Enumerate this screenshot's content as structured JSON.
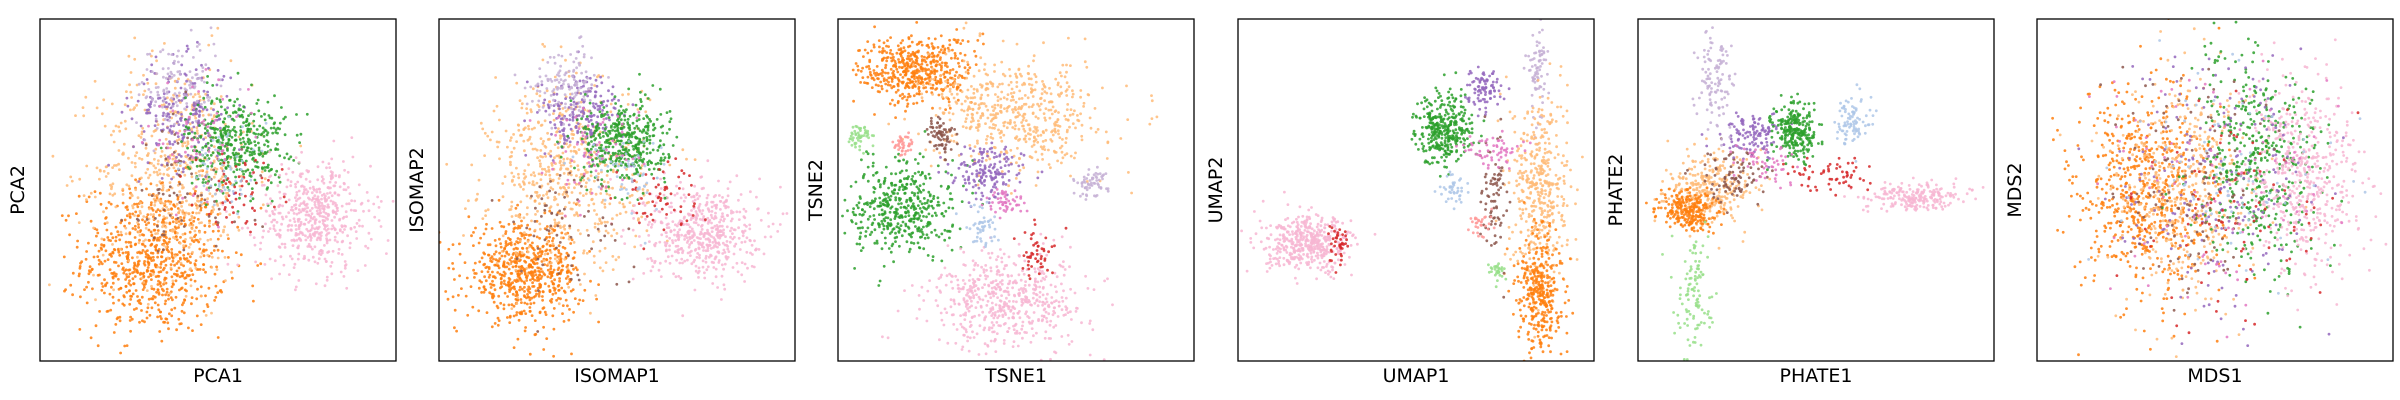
{
  "palette": {
    "orange": "#ff7f0e",
    "light_orange": "#ffbb78",
    "pink": "#f7b6d2",
    "green": "#2ca02c",
    "light_green": "#98df8a",
    "purple": "#9467bd",
    "lavender": "#c5b0d5",
    "red": "#d62728",
    "salmon": "#ff9896",
    "brown": "#8c564b",
    "magenta": "#e377c2",
    "light_blue": "#aec7e8"
  },
  "chart_data": [
    {
      "type": "scatter",
      "xlabel": "PCA1",
      "ylabel": "PCA2",
      "xlim": [
        0,
        100
      ],
      "ylim": [
        0,
        100
      ],
      "grid": false,
      "legend": "none",
      "clusters": [
        {
          "color": "orange",
          "cx": 32,
          "cy": 30,
          "sx": 10,
          "sy": 11,
          "n": 750
        },
        {
          "color": "light_orange",
          "cx": 38,
          "cy": 56,
          "sx": 11,
          "sy": 16,
          "n": 550
        },
        {
          "color": "purple",
          "cx": 40,
          "cy": 72,
          "sx": 7,
          "sy": 8,
          "n": 220
        },
        {
          "color": "lavender",
          "cx": 39,
          "cy": 80,
          "sx": 6,
          "sy": 7,
          "n": 120
        },
        {
          "color": "green",
          "cx": 55,
          "cy": 64,
          "sx": 7,
          "sy": 7,
          "n": 420
        },
        {
          "color": "pink",
          "cx": 77,
          "cy": 42,
          "sx": 8,
          "sy": 8,
          "n": 520
        },
        {
          "color": "red",
          "cx": 56,
          "cy": 50,
          "sx": 6,
          "sy": 5,
          "n": 60
        },
        {
          "color": "brown",
          "cx": 38,
          "cy": 48,
          "sx": 10,
          "sy": 12,
          "n": 70
        },
        {
          "color": "light_blue",
          "cx": 52,
          "cy": 56,
          "sx": 6,
          "sy": 6,
          "n": 60
        },
        {
          "color": "magenta",
          "cx": 44,
          "cy": 64,
          "sx": 7,
          "sy": 8,
          "n": 60
        }
      ]
    },
    {
      "type": "scatter",
      "xlabel": "ISOMAP1",
      "ylabel": "ISOMAP2",
      "xlim": [
        0,
        100
      ],
      "ylim": [
        0,
        100
      ],
      "grid": false,
      "legend": "none",
      "clusters": [
        {
          "color": "orange",
          "cx": 24,
          "cy": 26,
          "sx": 8,
          "sy": 7,
          "n": 650
        },
        {
          "color": "light_orange",
          "cx": 36,
          "cy": 54,
          "sx": 11,
          "sy": 14,
          "n": 600
        },
        {
          "color": "purple",
          "cx": 40,
          "cy": 72,
          "sx": 6,
          "sy": 6,
          "n": 200
        },
        {
          "color": "lavender",
          "cx": 36,
          "cy": 82,
          "sx": 5,
          "sy": 5,
          "n": 120
        },
        {
          "color": "green",
          "cx": 52,
          "cy": 64,
          "sx": 6,
          "sy": 6,
          "n": 420
        },
        {
          "color": "pink",
          "cx": 74,
          "cy": 38,
          "sx": 8,
          "sy": 7,
          "n": 520
        },
        {
          "color": "red",
          "cx": 62,
          "cy": 48,
          "sx": 6,
          "sy": 5,
          "n": 60
        },
        {
          "color": "brown",
          "cx": 34,
          "cy": 40,
          "sx": 9,
          "sy": 10,
          "n": 70
        },
        {
          "color": "light_blue",
          "cx": 52,
          "cy": 55,
          "sx": 6,
          "sy": 6,
          "n": 60
        },
        {
          "color": "magenta",
          "cx": 43,
          "cy": 62,
          "sx": 7,
          "sy": 7,
          "n": 60
        }
      ]
    },
    {
      "type": "scatter",
      "xlabel": "TSNE1",
      "ylabel": "TSNE2",
      "xlim": [
        0,
        100
      ],
      "ylim": [
        0,
        100
      ],
      "grid": false,
      "legend": "none",
      "clusters": [
        {
          "color": "orange",
          "cx": 22,
          "cy": 85,
          "sx": 8,
          "sy": 5,
          "n": 500
        },
        {
          "color": "light_orange",
          "cx": 50,
          "cy": 72,
          "sx": 12,
          "sy": 8,
          "n": 550
        },
        {
          "color": "green",
          "cx": 18,
          "cy": 45,
          "sx": 7,
          "sy": 7,
          "n": 450
        },
        {
          "color": "pink",
          "cx": 48,
          "cy": 18,
          "sx": 11,
          "sy": 7,
          "n": 550
        },
        {
          "color": "purple",
          "cx": 42,
          "cy": 55,
          "sx": 5,
          "sy": 4,
          "n": 160
        },
        {
          "color": "brown",
          "cx": 29,
          "cy": 66,
          "sx": 2,
          "sy": 3,
          "n": 70
        },
        {
          "color": "light_green",
          "cx": 6,
          "cy": 66,
          "sx": 1.5,
          "sy": 1.8,
          "n": 50
        },
        {
          "color": "salmon",
          "cx": 18,
          "cy": 63,
          "sx": 1.5,
          "sy": 1.8,
          "n": 40
        },
        {
          "color": "lavender",
          "cx": 71,
          "cy": 52,
          "sx": 2.5,
          "sy": 2,
          "n": 60
        },
        {
          "color": "light_blue",
          "cx": 40,
          "cy": 39,
          "sx": 2.5,
          "sy": 3,
          "n": 50
        },
        {
          "color": "red",
          "cx": 56,
          "cy": 32,
          "sx": 2.5,
          "sy": 4,
          "n": 50
        },
        {
          "color": "magenta",
          "cx": 47,
          "cy": 46,
          "sx": 3,
          "sy": 2,
          "n": 50
        }
      ]
    },
    {
      "type": "scatter",
      "xlabel": "UMAP1",
      "ylabel": "UMAP2",
      "xlim": [
        0,
        100
      ],
      "ylim": [
        0,
        100
      ],
      "grid": false,
      "legend": "none",
      "clusters": [
        {
          "color": "pink",
          "cx": 20,
          "cy": 34,
          "sx": 6,
          "sy": 4,
          "n": 450
        },
        {
          "color": "red",
          "cx": 28,
          "cy": 35,
          "sx": 1.5,
          "sy": 3,
          "n": 40
        },
        {
          "color": "green",
          "cx": 58,
          "cy": 68,
          "sx": 4,
          "sy": 5,
          "n": 350
        },
        {
          "color": "purple",
          "cx": 69,
          "cy": 79,
          "sx": 2.5,
          "sy": 3,
          "n": 90
        },
        {
          "color": "lavender",
          "cx": 84,
          "cy": 85,
          "sx": 1.3,
          "sy": 7,
          "n": 80
        },
        {
          "color": "light_orange",
          "cx": 85,
          "cy": 50,
          "sx": 4,
          "sy": 14,
          "n": 420
        },
        {
          "color": "orange",
          "cx": 85,
          "cy": 20,
          "sx": 3,
          "sy": 9,
          "n": 350
        },
        {
          "color": "brown",
          "cx": 72,
          "cy": 48,
          "sx": 2,
          "sy": 8,
          "n": 80
        },
        {
          "color": "magenta",
          "cx": 72,
          "cy": 62,
          "sx": 4,
          "sy": 2.5,
          "n": 60
        },
        {
          "color": "light_blue",
          "cx": 60,
          "cy": 50,
          "sx": 2,
          "sy": 2.5,
          "n": 40
        },
        {
          "color": "salmon",
          "cx": 68,
          "cy": 40,
          "sx": 1.5,
          "sy": 2,
          "n": 30
        },
        {
          "color": "light_green",
          "cx": 73,
          "cy": 26,
          "sx": 1.5,
          "sy": 1.5,
          "n": 30
        }
      ]
    },
    {
      "type": "scatter",
      "xlabel": "PHATE1",
      "ylabel": "PHATE2",
      "xlim": [
        0,
        100
      ],
      "ylim": [
        0,
        100
      ],
      "grid": false,
      "legend": "none",
      "clusters": [
        {
          "color": "light_orange",
          "cx": 20,
          "cy": 50,
          "sx": 6,
          "sy": 5,
          "n": 300
        },
        {
          "color": "orange",
          "cx": 14,
          "cy": 44,
          "sx": 4,
          "sy": 3,
          "n": 250
        },
        {
          "color": "brown",
          "cx": 28,
          "cy": 54,
          "sx": 6,
          "sy": 4,
          "n": 90
        },
        {
          "color": "purple",
          "cx": 32,
          "cy": 66,
          "sx": 4,
          "sy": 3,
          "n": 120
        },
        {
          "color": "green",
          "cx": 44,
          "cy": 67,
          "sx": 3,
          "sy": 4,
          "n": 260
        },
        {
          "color": "light_blue",
          "cx": 60,
          "cy": 70,
          "sx": 2.5,
          "sy": 4,
          "n": 90
        },
        {
          "color": "pink",
          "cx": 78,
          "cy": 48,
          "sx": 7,
          "sy": 2,
          "n": 220
        },
        {
          "color": "red",
          "cx": 55,
          "cy": 55,
          "sx": 6,
          "sy": 2.5,
          "n": 60
        },
        {
          "color": "magenta",
          "cx": 36,
          "cy": 58,
          "sx": 4,
          "sy": 3,
          "n": 50
        },
        {
          "color": "lavender",
          "cx": 22,
          "cy": 82,
          "sx": 2.5,
          "sy": 8,
          "n": 110
        },
        {
          "color": "light_green",
          "cx": 16,
          "cy": 20,
          "sx": 2.5,
          "sy": 8,
          "n": 110
        }
      ]
    },
    {
      "type": "scatter",
      "xlabel": "MDS1",
      "ylabel": "MDS2",
      "xlim": [
        0,
        100
      ],
      "ylim": [
        0,
        100
      ],
      "grid": false,
      "legend": "none",
      "clusters": [
        {
          "color": "orange",
          "cx": 30,
          "cy": 48,
          "sx": 10,
          "sy": 16,
          "n": 650
        },
        {
          "color": "light_orange",
          "cx": 42,
          "cy": 50,
          "sx": 10,
          "sy": 16,
          "n": 450
        },
        {
          "color": "green",
          "cx": 62,
          "cy": 58,
          "sx": 9,
          "sy": 16,
          "n": 450
        },
        {
          "color": "pink",
          "cx": 76,
          "cy": 54,
          "sx": 8,
          "sy": 14,
          "n": 480
        },
        {
          "color": "purple",
          "cx": 50,
          "cy": 54,
          "sx": 13,
          "sy": 17,
          "n": 200
        },
        {
          "color": "brown",
          "cx": 42,
          "cy": 50,
          "sx": 13,
          "sy": 17,
          "n": 120
        },
        {
          "color": "red",
          "cx": 56,
          "cy": 44,
          "sx": 13,
          "sy": 17,
          "n": 90
        },
        {
          "color": "magenta",
          "cx": 50,
          "cy": 50,
          "sx": 14,
          "sy": 17,
          "n": 90
        },
        {
          "color": "light_blue",
          "cx": 52,
          "cy": 55,
          "sx": 14,
          "sy": 17,
          "n": 80
        }
      ]
    }
  ]
}
